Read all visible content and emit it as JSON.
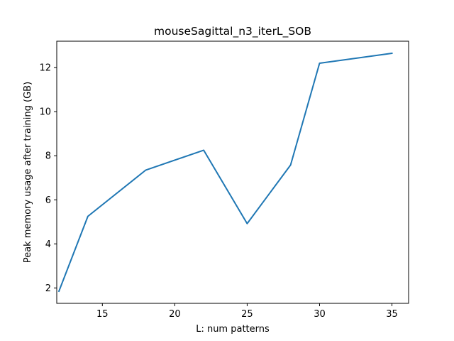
{
  "chart_data": {
    "type": "line",
    "title": "mouseSagittal_n3_iterL_SOB",
    "xlabel": "L: num patterns",
    "ylabel": "Peak memory usage after training (GB)",
    "x": [
      12,
      14,
      18,
      22,
      25,
      28,
      30,
      35
    ],
    "series": [
      {
        "values": [
          1.85,
          5.25,
          7.35,
          8.25,
          4.92,
          7.58,
          12.2,
          12.65
        ],
        "color": "#1f77b4"
      }
    ],
    "xlim": [
      11.85,
      36.15
    ],
    "ylim": [
      1.3,
      13.2
    ],
    "xticks": [
      15,
      20,
      25,
      30,
      35
    ],
    "yticks": [
      2,
      4,
      6,
      8,
      10,
      12
    ],
    "grid": false,
    "legend": "none"
  }
}
